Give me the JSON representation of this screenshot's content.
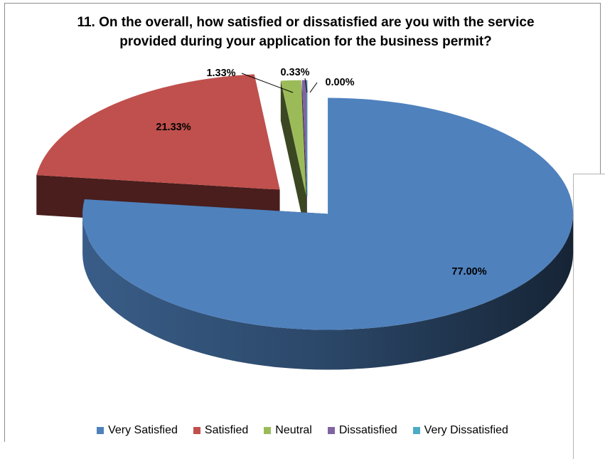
{
  "chart_data": {
    "type": "pie",
    "title_line1": "11. On the overall, how satisfied or dissatisfied are you with the service",
    "title_line2": "provided during your application for the business permit?",
    "slices": [
      {
        "name": "Very Satisfied",
        "value": 77.0,
        "label": "77.00%",
        "color": "#4f81bd"
      },
      {
        "name": "Satisfied",
        "value": 21.33,
        "label": "21.33%",
        "color": "#c0504d"
      },
      {
        "name": "Neutral",
        "value": 1.33,
        "label": "1.33%",
        "color": "#9bbb59"
      },
      {
        "name": "Dissatisfied",
        "value": 0.33,
        "label": "0.33%",
        "color": "#8064a2"
      },
      {
        "name": "Very Dissatisfied",
        "value": 0.0,
        "label": "0.00%",
        "color": "#4bacc6"
      }
    ],
    "exploded": true,
    "three_d": true,
    "legend_position": "bottom"
  }
}
